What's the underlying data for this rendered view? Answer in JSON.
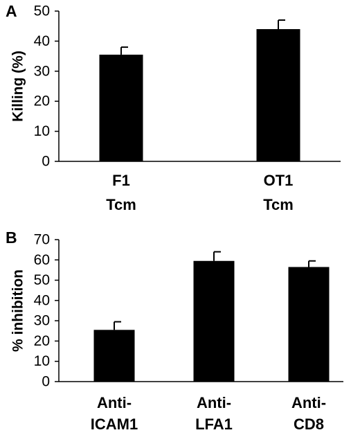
{
  "chart_data": [
    {
      "panel": "A",
      "type": "bar",
      "categories": [
        [
          "F1",
          "Tcm"
        ],
        [
          "OT1",
          "Tcm"
        ]
      ],
      "values": [
        35.5,
        44
      ],
      "errors": [
        2.5,
        3
      ],
      "ylabel": "Killing (%)",
      "ylim": [
        0,
        50
      ],
      "yticks": [
        0,
        10,
        20,
        30,
        40,
        50
      ],
      "bar_color": "#000000",
      "grid": false,
      "legend": "none"
    },
    {
      "panel": "B",
      "type": "bar",
      "categories": [
        [
          "Anti-",
          "ICAM1"
        ],
        [
          "Anti-",
          "LFA1"
        ],
        [
          "Anti-",
          "CD8"
        ]
      ],
      "values": [
        25.5,
        59.5,
        56.5
      ],
      "errors": [
        4,
        4.5,
        3
      ],
      "ylabel": "% inhibition",
      "ylim": [
        0,
        70
      ],
      "yticks": [
        0,
        10,
        20,
        30,
        40,
        50,
        60,
        70
      ],
      "bar_color": "#000000",
      "grid": false,
      "legend": "none"
    }
  ]
}
